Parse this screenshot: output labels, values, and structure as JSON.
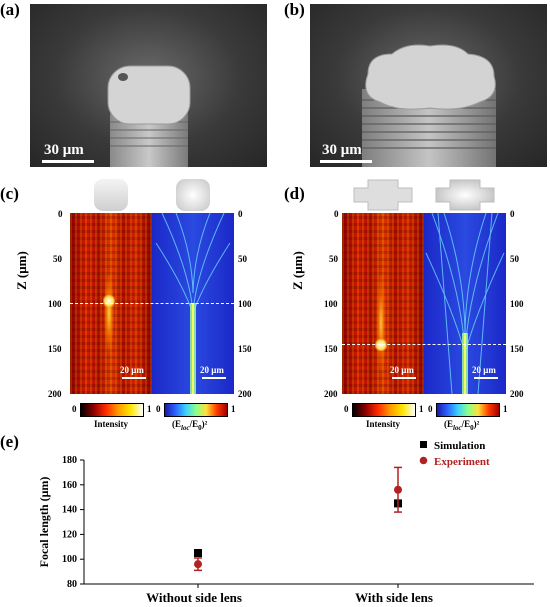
{
  "panels": {
    "a": "(a)",
    "b": "(b)",
    "c": "(c)",
    "d": "(d)",
    "e": "(e)"
  },
  "sem_scale": "30 μm",
  "map_scale": "20 μm",
  "z_label": "Z (μm)",
  "z_ticks": [
    "0",
    "50",
    "100",
    "150",
    "200"
  ],
  "colorbars": {
    "min": "0",
    "max": "1",
    "intensity_label": "Intensity",
    "field_label": "(E",
    "field_sub1": "loc",
    "field_mid": "/E",
    "field_sub2": "0",
    "field_end": ")²"
  },
  "colors": {
    "simulation": "#000000",
    "experiment": "#b22222"
  },
  "chart_data": {
    "type": "scatter",
    "categories": [
      "Without side lens",
      "With side lens"
    ],
    "ylabel": "Focal length (μm)",
    "xlabel": "",
    "ylim": [
      80,
      180
    ],
    "yticks": [
      80,
      100,
      120,
      140,
      160,
      180
    ],
    "legend_position": "top-right",
    "grid": false,
    "series": [
      {
        "name": "Simulation",
        "values": [
          105,
          145
        ]
      },
      {
        "name": "Experiment",
        "values": [
          96,
          156
        ],
        "error": [
          5,
          18
        ]
      }
    ]
  }
}
